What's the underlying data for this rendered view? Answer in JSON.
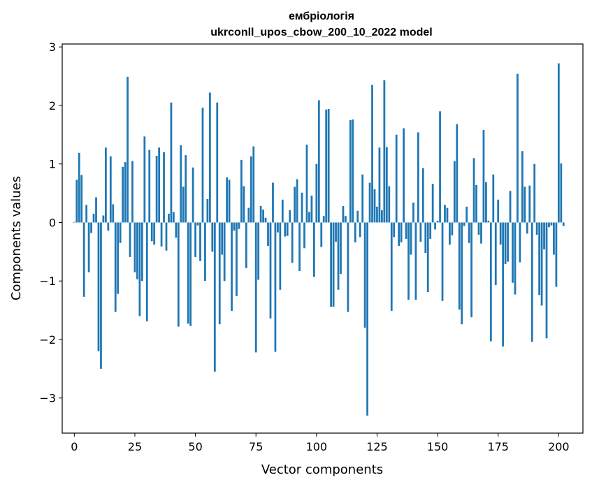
{
  "chart_data": {
    "type": "bar",
    "title": "ембріологія",
    "subtitle": "ukrconll_upos_cbow_200_10_2022 model",
    "xlabel": "Vector components",
    "ylabel": "Components values",
    "xlim": [
      -5,
      210
    ],
    "ylim": [
      -3.6,
      3.05
    ],
    "xticks": [
      0,
      25,
      50,
      75,
      100,
      125,
      150,
      175,
      200
    ],
    "yticks": [
      -3,
      -2,
      -1,
      0,
      1,
      2,
      3
    ],
    "ytick_labels": [
      "−3",
      "−2",
      "−1",
      "0",
      "1",
      "2",
      "3"
    ],
    "grid": false,
    "color": "#1f77b4",
    "values": [
      0.01,
      0.73,
      1.19,
      0.81,
      -1.27,
      0.3,
      -0.85,
      -0.18,
      0.15,
      0.43,
      -2.2,
      -2.5,
      0.12,
      1.28,
      -0.14,
      1.13,
      0.31,
      -1.53,
      -1.22,
      -0.35,
      0.95,
      1.03,
      2.49,
      -0.59,
      1.05,
      -0.85,
      -0.97,
      -1.6,
      -1.0,
      1.47,
      -1.69,
      1.24,
      -0.32,
      -0.38,
      1.14,
      1.28,
      -0.41,
      1.2,
      -0.48,
      0.15,
      2.05,
      0.18,
      -0.26,
      -1.78,
      1.32,
      0.61,
      1.15,
      -1.73,
      -1.77,
      0.94,
      -0.59,
      -0.05,
      -0.66,
      1.96,
      -1.0,
      0.4,
      2.22,
      -0.5,
      -2.55,
      2.05,
      -1.74,
      -0.55,
      -1.0,
      0.77,
      0.73,
      -1.51,
      -0.14,
      -1.26,
      -0.11,
      1.07,
      0.62,
      -0.78,
      0.25,
      1.13,
      1.3,
      -2.22,
      -0.98,
      0.28,
      0.22,
      0.08,
      -0.4,
      -1.64,
      0.68,
      -2.21,
      -0.17,
      -1.15,
      0.39,
      -0.24,
      -0.23,
      0.21,
      -0.69,
      0.61,
      0.74,
      -0.83,
      0.51,
      -0.44,
      1.33,
      0.18,
      0.46,
      -0.93,
      1.0,
      2.09,
      -0.42,
      0.11,
      1.93,
      1.94,
      -1.44,
      -1.44,
      -0.33,
      -1.15,
      -0.88,
      0.28,
      0.11,
      -1.53,
      1.75,
      1.76,
      -0.34,
      0.2,
      -0.25,
      0.82,
      -1.8,
      -3.3,
      0.68,
      2.35,
      0.57,
      0.27,
      1.28,
      0.21,
      2.43,
      1.29,
      0.62,
      -1.51,
      -0.25,
      1.5,
      -0.4,
      -0.34,
      1.61,
      -0.28,
      -1.32,
      -0.55,
      0.34,
      -1.32,
      1.54,
      -0.33,
      0.93,
      -0.52,
      -1.19,
      -0.28,
      0.66,
      -0.12,
      0.03,
      1.9,
      -1.34,
      0.3,
      0.25,
      -0.38,
      -0.22,
      1.05,
      1.68,
      -1.49,
      -1.74,
      -0.06,
      0.27,
      -0.35,
      -1.62,
      1.1,
      0.64,
      -0.21,
      -0.36,
      1.58,
      0.69,
      0.03,
      -2.03,
      0.82,
      -1.07,
      0.39,
      -0.38,
      -2.12,
      -0.71,
      -0.67,
      0.54,
      -1.03,
      -1.23,
      2.54,
      -0.68,
      1.22,
      0.61,
      -0.19,
      0.63,
      -2.04,
      1.0,
      -0.21,
      -1.24,
      -1.42,
      -0.46,
      -1.98,
      -0.08,
      -0.05,
      -0.55,
      -1.1,
      2.72,
      1.01,
      -0.06
    ]
  }
}
